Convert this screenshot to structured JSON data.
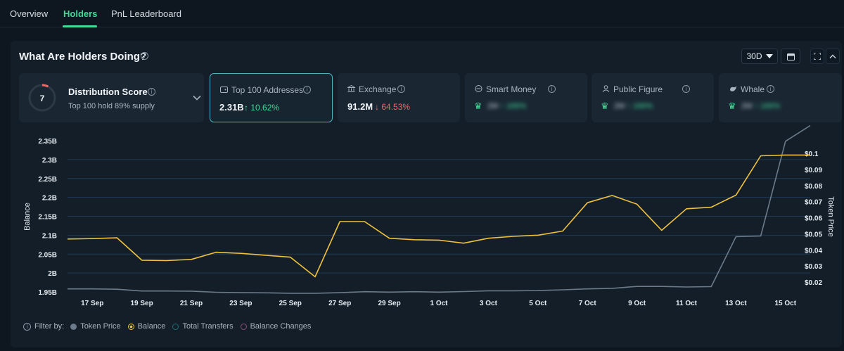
{
  "tabs": [
    {
      "label": "Overview",
      "active": false
    },
    {
      "label": "Holders",
      "active": true
    },
    {
      "label": "PnL Leaderboard",
      "active": false
    }
  ],
  "panel": {
    "title": "What Are Holders Doing?",
    "period": "30D"
  },
  "distribution": {
    "score": "7",
    "label": "Distribution Score",
    "sub": "Top 100 hold 89% supply"
  },
  "metrics": [
    {
      "label": "Top 100 Addresses",
      "value": "2.31B",
      "change": "10.62%",
      "direction": "up",
      "icon": "wallet-icon",
      "selected": true
    },
    {
      "label": "Exchange",
      "value": "91.2M",
      "change": "64.53%",
      "direction": "down",
      "icon": "bank-icon",
      "selected": false
    },
    {
      "label": "Smart Money",
      "value": "2M",
      "change": "166%",
      "direction": "up",
      "icon": "smart-money-icon",
      "locked": true
    },
    {
      "label": "Public Figure",
      "value": "2M",
      "change": "166%",
      "direction": "up",
      "icon": "public-figure-icon",
      "locked": true
    },
    {
      "label": "Whale",
      "value": "2M",
      "change": "166%",
      "direction": "up",
      "icon": "whale-icon",
      "locked": true
    }
  ],
  "chart_data": {
    "type": "line",
    "ylabel": "Balance",
    "y2label": "Token Price",
    "x_ticks": [
      "17 Sep",
      "19 Sep",
      "21 Sep",
      "23 Sep",
      "25 Sep",
      "27 Sep",
      "29 Sep",
      "1 Oct",
      "3 Oct",
      "5 Oct",
      "7 Oct",
      "9 Oct",
      "11 Oct",
      "13 Oct",
      "15 Oct"
    ],
    "y_ticks": [
      "2.35B",
      "2.3B",
      "2.25B",
      "2.2B",
      "2.15B",
      "2.1B",
      "2.05B",
      "2B",
      "1.95B"
    ],
    "y2_ticks": [
      "$0.1",
      "$0.09",
      "$0.08",
      "$0.07",
      "$0.06",
      "$0.05",
      "$0.04",
      "$0.03",
      "$0.02"
    ],
    "ylim": [
      1.95,
      2.35
    ],
    "y2lim": [
      0.02,
      0.1
    ],
    "x": [
      "16 Sep",
      "17 Sep",
      "18 Sep",
      "19 Sep",
      "20 Sep",
      "21 Sep",
      "22 Sep",
      "23 Sep",
      "24 Sep",
      "25 Sep",
      "26 Sep",
      "27 Sep",
      "28 Sep",
      "29 Sep",
      "30 Sep",
      "1 Oct",
      "2 Oct",
      "3 Oct",
      "4 Oct",
      "5 Oct",
      "6 Oct",
      "7 Oct",
      "8 Oct",
      "9 Oct",
      "10 Oct",
      "11 Oct",
      "12 Oct",
      "13 Oct",
      "14 Oct",
      "15 Oct",
      "16 Oct"
    ],
    "series": [
      {
        "name": "Balance",
        "axis": "left",
        "color": "#f0c23b",
        "values": [
          2.09,
          2.091,
          2.093,
          2.034,
          2.033,
          2.036,
          2.055,
          2.052,
          2.047,
          2.042,
          1.99,
          2.136,
          2.136,
          2.092,
          2.088,
          2.087,
          2.079,
          2.092,
          2.097,
          2.1,
          2.111,
          2.186,
          2.205,
          2.182,
          2.113,
          2.17,
          2.174,
          2.206,
          2.31,
          2.312,
          2.312
        ]
      },
      {
        "name": "Token Price",
        "axis": "right",
        "color": "#6c7b89",
        "values": [
          0.0216,
          0.0216,
          0.0214,
          0.0205,
          0.0205,
          0.0204,
          0.0198,
          0.0196,
          0.0195,
          0.0193,
          0.0193,
          0.0196,
          0.0201,
          0.0199,
          0.0201,
          0.0199,
          0.0202,
          0.0206,
          0.0206,
          0.0207,
          0.0211,
          0.0216,
          0.0219,
          0.0229,
          0.0229,
          0.0226,
          0.0228,
          0.0492,
          0.0496,
          0.0997,
          0.108
        ]
      }
    ],
    "grid": true
  },
  "legend": {
    "filter_label": "Filter by:",
    "items": [
      {
        "label": "Token Price",
        "color": "#6c7b89",
        "style": "filled"
      },
      {
        "label": "Balance",
        "color": "#f0c23b",
        "style": "ring"
      },
      {
        "label": "Total Transfers",
        "color": "#1d6e79",
        "style": "ring"
      },
      {
        "label": "Balance Changes",
        "color": "#8a4d73",
        "style": "ring"
      }
    ]
  }
}
